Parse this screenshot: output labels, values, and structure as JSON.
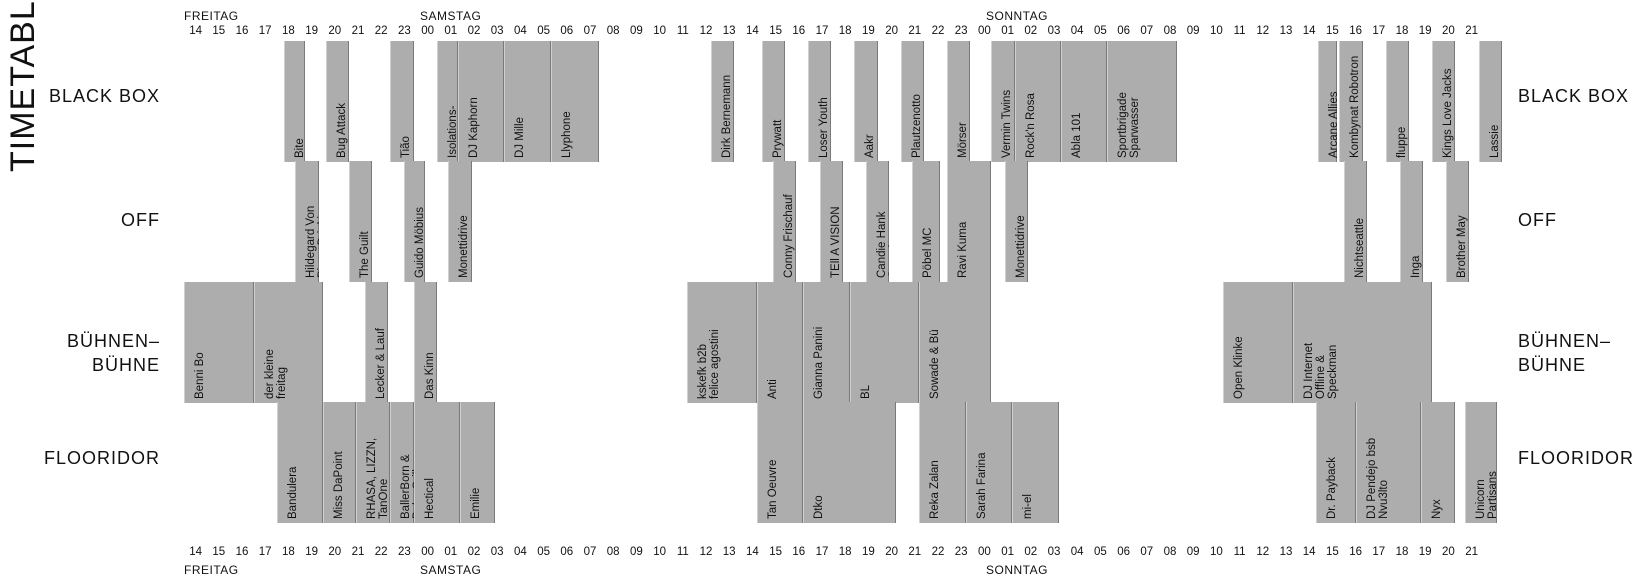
{
  "title": "TIMETABLE",
  "stages": [
    "BLACK BOX",
    "OFF",
    "BÜHNEN–\nBÜHNE",
    "FLOORIDOR"
  ],
  "days": [
    {
      "label": "FREITAG",
      "at": 14
    },
    {
      "label": "SAMSTAG",
      "at": 23
    },
    {
      "label": "SONNTAG",
      "at": 47
    },
    {
      "label": "FREITAG",
      "at": 14
    },
    {
      "label": "SAMSTAG",
      "at": 23
    },
    {
      "label": "SONNTAG",
      "at": 47
    }
  ],
  "hour_groups": [
    [
      "14",
      "15",
      "16",
      "17",
      "18",
      "19",
      "20",
      "21",
      "22",
      "23",
      "00",
      "01",
      "02",
      "03",
      "04",
      "05",
      "06",
      "07",
      "08",
      "09",
      "10",
      "11"
    ],
    [
      "12",
      "13",
      "14",
      "15",
      "16",
      "17",
      "18",
      "19",
      "20",
      "21",
      "22",
      "23",
      "00",
      "01",
      "02",
      "03",
      "04",
      "05",
      "06",
      "07",
      "08",
      "09",
      "10"
    ],
    [
      "11",
      "12",
      "13",
      "14",
      "15",
      "16",
      "17",
      "18",
      "19",
      "20",
      "21"
    ]
  ],
  "colors": {
    "slot": "#adadad",
    "text": "#111111"
  },
  "slots": {
    "black_box": [
      {
        "name": "Bite",
        "start": 18.3,
        "end": 19.2
      },
      {
        "name": "Bug Attack",
        "start": 20.1,
        "end": 21.1
      },
      {
        "name": "Tião",
        "start": 22.9,
        "end": 23.9
      },
      {
        "name": "Isolations-\ngemeinschaft",
        "start": 24.9,
        "end": 25.8
      },
      {
        "name": "DJ Kaphorn",
        "start": 25.8,
        "end": 27.8
      },
      {
        "name": "DJ Mille",
        "start": 27.8,
        "end": 29.8
      },
      {
        "name": "Llyphone",
        "start": 29.8,
        "end": 31.9
      },
      {
        "name": "Dirk Bernemann",
        "start": 36.7,
        "end": 37.7
      },
      {
        "name": "Prywatt",
        "start": 38.9,
        "end": 39.9
      },
      {
        "name": "Loser Youth",
        "start": 40.9,
        "end": 41.9
      },
      {
        "name": "Aakr",
        "start": 42.9,
        "end": 43.9
      },
      {
        "name": "Plautzenotto",
        "start": 44.9,
        "end": 45.9
      },
      {
        "name": "Mörser",
        "start": 46.9,
        "end": 47.9
      },
      {
        "name": "Vermin Twins",
        "start": 48.8,
        "end": 49.8
      },
      {
        "name": "Rock'n Rosa",
        "start": 49.8,
        "end": 51.8
      },
      {
        "name": "Abla 101",
        "start": 51.8,
        "end": 53.8
      },
      {
        "name": "Sportbrigade\nSparwasser",
        "start": 53.8,
        "end": 56.8
      },
      {
        "name": "Arcane Allies",
        "start": 62.9,
        "end": 63.7
      },
      {
        "name": "Kombynat Robotron",
        "start": 63.8,
        "end": 64.8
      },
      {
        "name": "fluppe",
        "start": 65.8,
        "end": 66.8
      },
      {
        "name": "Kings Love Jacks",
        "start": 67.8,
        "end": 68.8
      },
      {
        "name": "Lassie",
        "start": 69.8,
        "end": 70.8
      }
    ],
    "off": [
      {
        "name": "Hildegard Von\nBinge Drinking",
        "start": 18.8,
        "end": 19.8
      },
      {
        "name": "The Guilt",
        "start": 21.1,
        "end": 22.1
      },
      {
        "name": "Guido Möbius",
        "start": 23.5,
        "end": 24.4
      },
      {
        "name": "Monettidrive",
        "start": 25.4,
        "end": 26.4
      },
      {
        "name": "Conny Frischauf",
        "start": 39.4,
        "end": 40.4
      },
      {
        "name": "TEll A VISION",
        "start": 41.4,
        "end": 42.4
      },
      {
        "name": "Candie Hank\nSoundsystem",
        "start": 43.4,
        "end": 44.4
      },
      {
        "name": "Pöbel MC",
        "start": 45.4,
        "end": 46.6
      },
      {
        "name": "Ravi Kuma",
        "start": 46.9,
        "end": 48.8
      },
      {
        "name": "Monettidrive",
        "start": 49.4,
        "end": 50.4
      },
      {
        "name": "Nichtseattle",
        "start": 64.0,
        "end": 65.0
      },
      {
        "name": "Inga",
        "start": 66.4,
        "end": 67.4
      },
      {
        "name": "Brother May",
        "start": 68.4,
        "end": 69.4
      }
    ],
    "buehnen": [
      {
        "name": "Benni Bo",
        "start": 14,
        "end": 17
      },
      {
        "name": "der kleine\nfreitag",
        "start": 17,
        "end": 20
      },
      {
        "name": "Lecker & Lauf",
        "start": 21.8,
        "end": 22.8
      },
      {
        "name": "Das Kinn",
        "start": 23.9,
        "end": 24.9
      },
      {
        "name": "kskefk b2b\nfelice agostini",
        "start": 35.7,
        "end": 38.7
      },
      {
        "name": "Anti",
        "start": 38.7,
        "end": 40.7
      },
      {
        "name": "Gianna Panini",
        "start": 40.7,
        "end": 42.7
      },
      {
        "name": "BL",
        "start": 42.7,
        "end": 45.7
      },
      {
        "name": "Sowade & Bü",
        "start": 45.7,
        "end": 48.8
      },
      {
        "name": "Open Klinke",
        "start": 58.8,
        "end": 61.8
      },
      {
        "name": "DJ Internet\nOffline &\nSpeckman",
        "start": 61.8,
        "end": 67.8
      }
    ],
    "flooridor": [
      {
        "name": "Bandulera",
        "start": 18,
        "end": 20
      },
      {
        "name": "Miss DaPoint",
        "start": 20,
        "end": 21.4
      },
      {
        "name": "RHASA, LIZZN,\nTanOne",
        "start": 21.4,
        "end": 22.9
      },
      {
        "name": "BallerBorn &\nBaby Grill",
        "start": 22.9,
        "end": 23.9
      },
      {
        "name": "Hectical",
        "start": 23.9,
        "end": 25.9
      },
      {
        "name": "Emilie",
        "start": 25.9,
        "end": 27.4
      },
      {
        "name": "Tan Oeuvre",
        "start": 38.7,
        "end": 40.7
      },
      {
        "name": "Dtko",
        "start": 40.7,
        "end": 44.7
      },
      {
        "name": "Reka Zalan",
        "start": 45.7,
        "end": 47.7
      },
      {
        "name": "Sarah Farina",
        "start": 47.7,
        "end": 49.7
      },
      {
        "name": "mi-el",
        "start": 49.7,
        "end": 51.7
      },
      {
        "name": "Dr. Payback",
        "start": 62.8,
        "end": 64.5
      },
      {
        "name": "DJ Pendejo bsb\nNvu3lto",
        "start": 64.5,
        "end": 67.3
      },
      {
        "name": "Nyx",
        "start": 67.3,
        "end": 68.8
      },
      {
        "name": "Unicorn\nPartisans",
        "start": 69.2,
        "end": 70.6
      }
    ]
  }
}
